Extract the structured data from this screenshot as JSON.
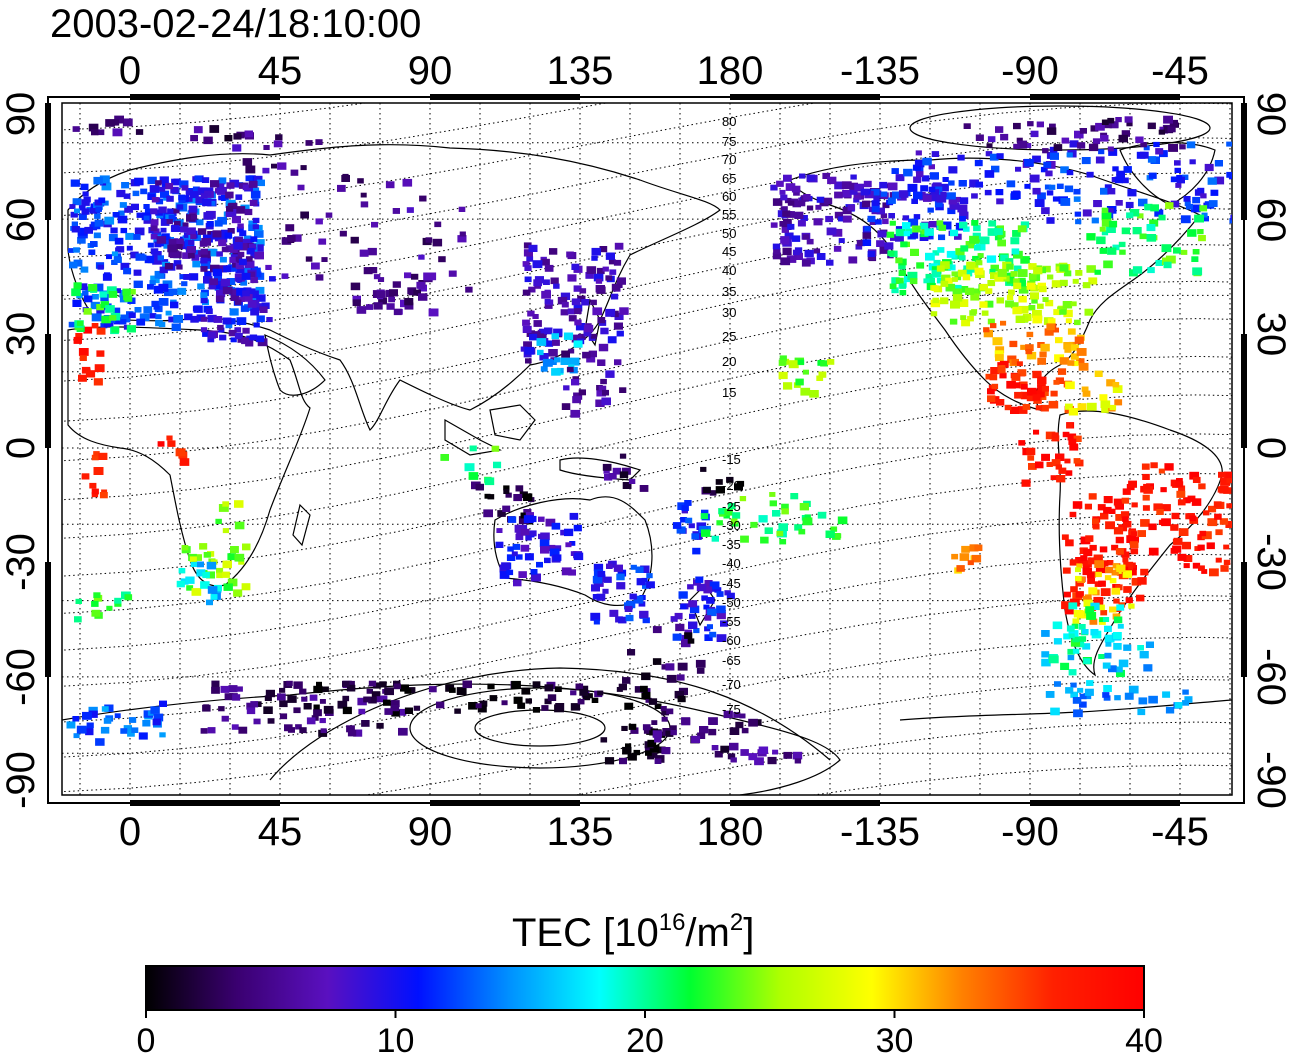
{
  "title": "2003-02-24/18:10:00",
  "map": {
    "top_lon_ticks": [
      "0",
      "45",
      "90",
      "135",
      "180",
      "-135",
      "-90",
      "-45"
    ],
    "bottom_lon_ticks": [
      "0",
      "45",
      "90",
      "135",
      "180",
      "-135",
      "-90",
      "-45"
    ],
    "left_lat_ticks": [
      "90",
      "60",
      "30",
      "0",
      "-30",
      "-60",
      "-90"
    ],
    "right_lat_ticks": [
      "90",
      "60",
      "30",
      "0",
      "-30",
      "-60",
      "-90"
    ],
    "meridian_marker_lon": -90,
    "meridian_marker_color": "#e8001c",
    "contour_labels_north": [
      "80",
      "75",
      "70",
      "65",
      "60",
      "55",
      "50",
      "45",
      "40",
      "35",
      "30",
      "25",
      "20",
      "15"
    ],
    "contour_labels_south": [
      "-15",
      "-20",
      "-25",
      "-30",
      "-35",
      "-40",
      "-45",
      "-50",
      "-55",
      "-60",
      "-65",
      "-70",
      "-75"
    ]
  },
  "colorbar": {
    "title_main": "TEC  [10",
    "title_sup1": "16",
    "title_mid": "/m",
    "title_sup2": "2",
    "title_end": "]",
    "ticks": [
      "0",
      "10",
      "20",
      "30",
      "40"
    ],
    "range": [
      0,
      40
    ],
    "stops": [
      "#000000",
      "#3a0070",
      "#5a10c0",
      "#0010ff",
      "#0090ff",
      "#00ffff",
      "#00ff30",
      "#b0ff00",
      "#ffff00",
      "#ff8000",
      "#ff2000",
      "#ff0000"
    ]
  }
}
